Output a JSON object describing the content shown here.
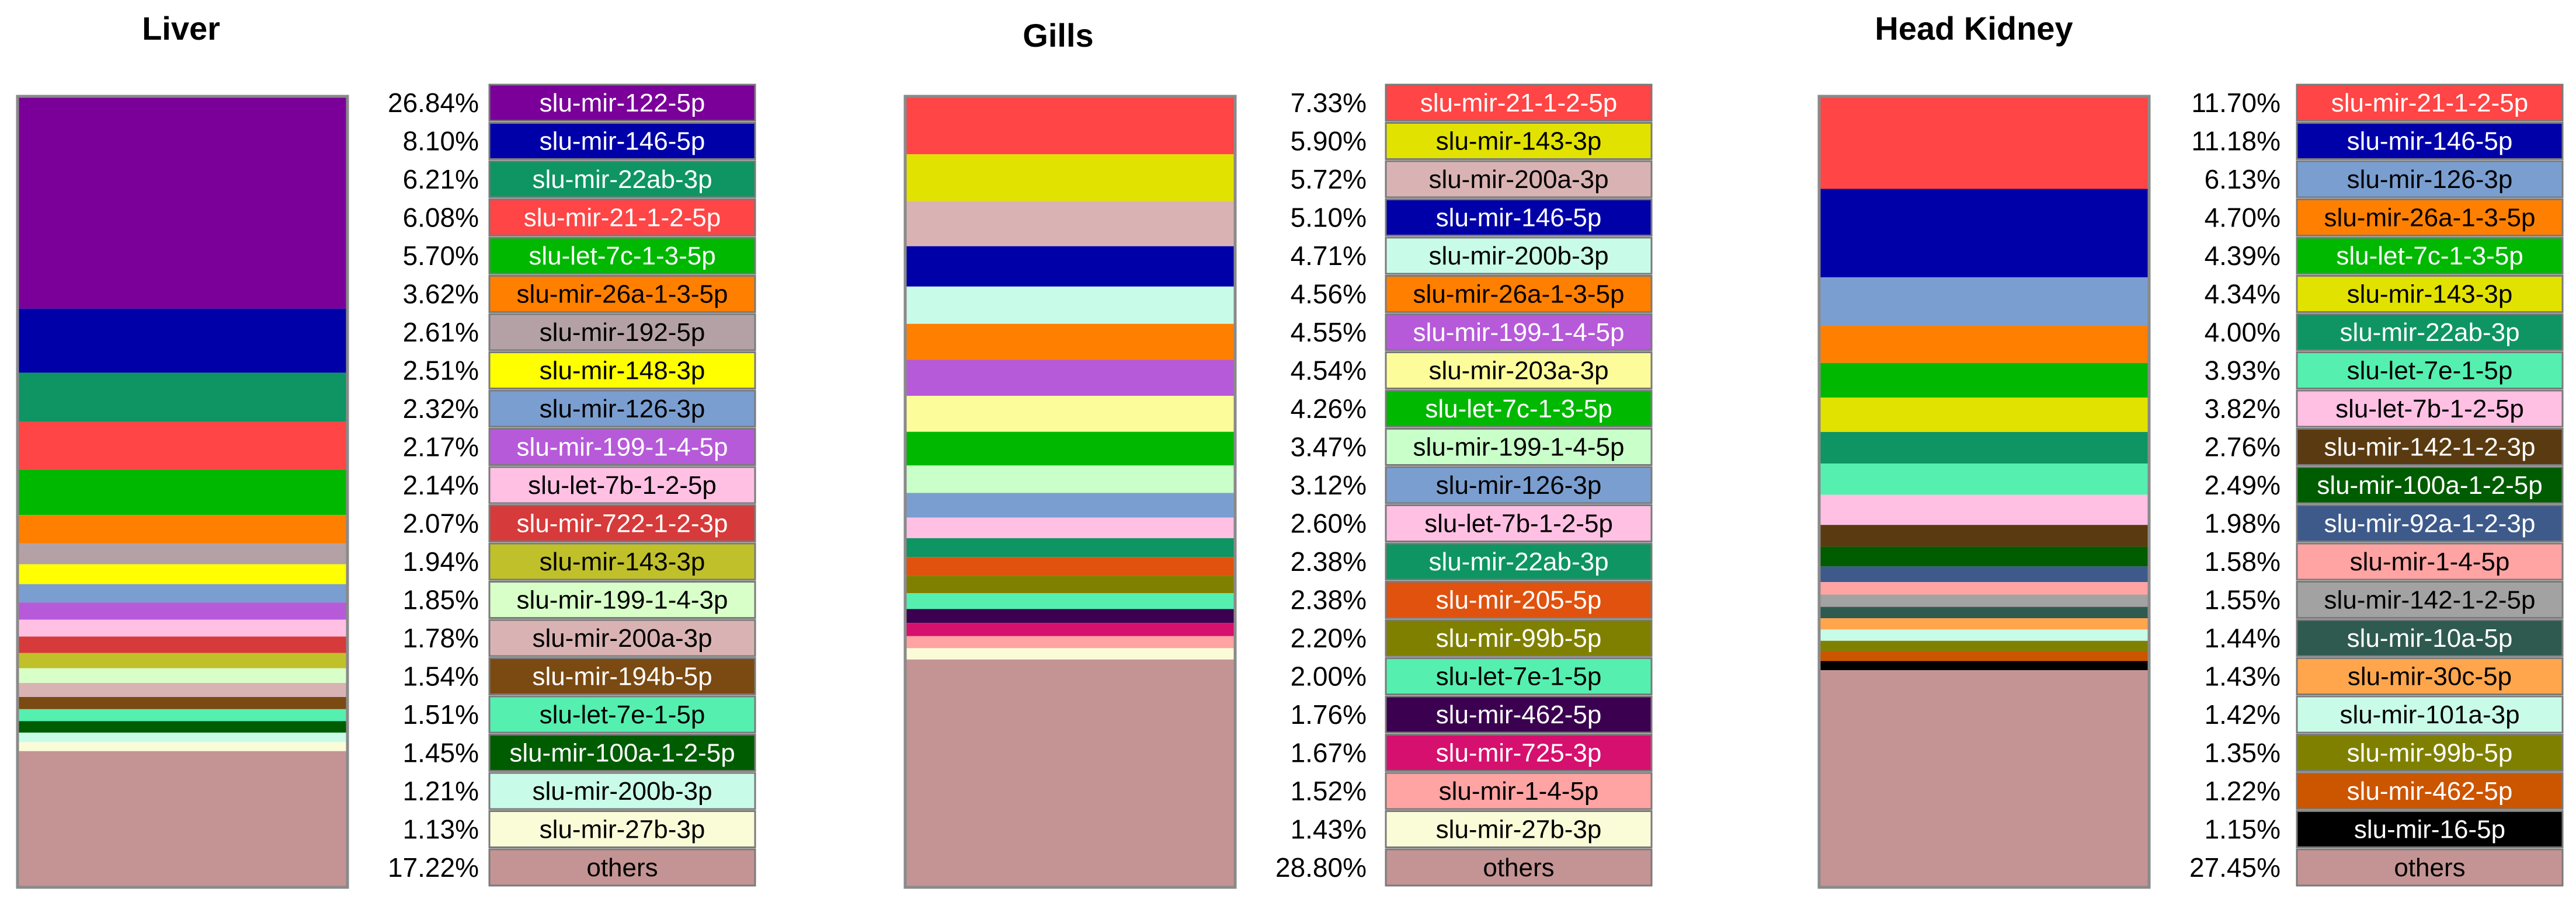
{
  "chart_data": [
    {
      "type": "bar",
      "subtype": "100%-stacked",
      "title": "Liver",
      "series": [
        {
          "name": "slu-mir-122-5p",
          "value": 26.84,
          "label": "26.84%",
          "color": "#7a0099"
        },
        {
          "name": "slu-mir-146-5p",
          "value": 8.1,
          "label": "8.10%",
          "color": "#0000a8"
        },
        {
          "name": "slu-mir-22ab-3p",
          "value": 6.21,
          "label": "6.21%",
          "color": "#0e9563"
        },
        {
          "name": "slu-mir-21-1-2-5p",
          "value": 6.08,
          "label": "6.08%",
          "color": "#ff4545"
        },
        {
          "name": "slu-let-7c-1-3-5p",
          "value": 5.7,
          "label": "5.70%",
          "color": "#00b800"
        },
        {
          "name": "slu-mir-26a-1-3-5p",
          "value": 3.62,
          "label": "3.62%",
          "color": "#ff7f00"
        },
        {
          "name": "slu-mir-192-5p",
          "value": 2.61,
          "label": "2.61%",
          "color": "#b3a1a6"
        },
        {
          "name": "slu-mir-148-3p",
          "value": 2.51,
          "label": "2.51%",
          "color": "#ffff00"
        },
        {
          "name": "slu-mir-126-3p",
          "value": 2.32,
          "label": "2.32%",
          "color": "#7a9ed0"
        },
        {
          "name": "slu-mir-199-1-4-5p",
          "value": 2.17,
          "label": "2.17%",
          "color": "#b65ad9"
        },
        {
          "name": "slu-let-7b-1-2-5p",
          "value": 2.14,
          "label": "2.14%",
          "color": "#ffc0e3"
        },
        {
          "name": "slu-mir-722-1-2-3p",
          "value": 2.07,
          "label": "2.07%",
          "color": "#d63a3a"
        },
        {
          "name": "slu-mir-143-3p",
          "value": 1.94,
          "label": "1.94%",
          "color": "#c0c02a"
        },
        {
          "name": "slu-mir-199-1-4-3p",
          "value": 1.85,
          "label": "1.85%",
          "color": "#d9ffc9"
        },
        {
          "name": "slu-mir-200a-3p",
          "value": 1.78,
          "label": "1.78%",
          "color": "#d9b3b3"
        },
        {
          "name": "slu-mir-194b-5p",
          "value": 1.54,
          "label": "1.54%",
          "color": "#7a4a12"
        },
        {
          "name": "slu-let-7e-1-5p",
          "value": 1.51,
          "label": "1.51%",
          "color": "#55efb0"
        },
        {
          "name": "slu-mir-100a-1-2-5p",
          "value": 1.45,
          "label": "1.45%",
          "color": "#005c00"
        },
        {
          "name": "slu-mir-200b-3p",
          "value": 1.21,
          "label": "1.21%",
          "color": "#c9fbe9"
        },
        {
          "name": "slu-mir-27b-3p",
          "value": 1.13,
          "label": "1.13%",
          "color": "#fafcd8"
        },
        {
          "name": "others",
          "value": 17.22,
          "label": "17.22%",
          "color": "#c49494"
        }
      ]
    },
    {
      "type": "bar",
      "subtype": "100%-stacked",
      "title": "Gills",
      "series": [
        {
          "name": "slu-mir-21-1-2-5p",
          "value": 7.33,
          "label": "7.33%",
          "color": "#ff4545"
        },
        {
          "name": "slu-mir-143-3p",
          "value": 5.9,
          "label": "5.90%",
          "color": "#e2e200"
        },
        {
          "name": "slu-mir-200a-3p",
          "value": 5.72,
          "label": "5.72%",
          "color": "#d9b3b3"
        },
        {
          "name": "slu-mir-146-5p",
          "value": 5.1,
          "label": "5.10%",
          "color": "#0000a8"
        },
        {
          "name": "slu-mir-200b-3p",
          "value": 4.71,
          "label": "4.71%",
          "color": "#c9fbe9"
        },
        {
          "name": "slu-mir-26a-1-3-5p",
          "value": 4.56,
          "label": "4.56%",
          "color": "#ff7f00"
        },
        {
          "name": "slu-mir-199-1-4-5p",
          "value": 4.55,
          "label": "4.55%",
          "color": "#b65ad9"
        },
        {
          "name": "slu-mir-203a-3p",
          "value": 4.54,
          "label": "4.54%",
          "color": "#fdfc9a"
        },
        {
          "name": "slu-let-7c-1-3-5p",
          "value": 4.26,
          "label": "4.26%",
          "color": "#00b800"
        },
        {
          "name": "slu-mir-199-1-4-5p",
          "value": 3.47,
          "label": "3.47%",
          "color": "#c9ffc9"
        },
        {
          "name": "slu-mir-126-3p",
          "value": 3.12,
          "label": "3.12%",
          "color": "#7a9ed0"
        },
        {
          "name": "slu-let-7b-1-2-5p",
          "value": 2.6,
          "label": "2.60%",
          "color": "#ffc0e3"
        },
        {
          "name": "slu-mir-22ab-3p",
          "value": 2.38,
          "label": "2.38%",
          "color": "#0e9563"
        },
        {
          "name": "slu-mir-205-5p",
          "value": 2.38,
          "label": "2.38%",
          "color": "#e0520e"
        },
        {
          "name": "slu-mir-99b-5p",
          "value": 2.2,
          "label": "2.20%",
          "color": "#808000"
        },
        {
          "name": "slu-let-7e-1-5p",
          "value": 2.0,
          "label": "2.00%",
          "color": "#55efb0"
        },
        {
          "name": "slu-mir-462-5p",
          "value": 1.76,
          "label": "1.76%",
          "color": "#3c0050"
        },
        {
          "name": "slu-mir-725-3p",
          "value": 1.67,
          "label": "1.67%",
          "color": "#d6106e"
        },
        {
          "name": "slu-mir-1-4-5p",
          "value": 1.52,
          "label": "1.52%",
          "color": "#ffa3a3"
        },
        {
          "name": "slu-mir-27b-3p",
          "value": 1.43,
          "label": "1.43%",
          "color": "#fafcd8"
        },
        {
          "name": "others",
          "value": 28.8,
          "label": "28.80%",
          "color": "#c49494"
        }
      ]
    },
    {
      "type": "bar",
      "subtype": "100%-stacked",
      "title": "Head Kidney",
      "series": [
        {
          "name": "slu-mir-21-1-2-5p",
          "value": 11.7,
          "label": "11.70%",
          "color": "#ff4545"
        },
        {
          "name": "slu-mir-146-5p",
          "value": 11.18,
          "label": "11.18%",
          "color": "#0000a8"
        },
        {
          "name": "slu-mir-126-3p",
          "value": 6.13,
          "label": "6.13%",
          "color": "#7a9ed0"
        },
        {
          "name": "slu-mir-26a-1-3-5p",
          "value": 4.7,
          "label": "4.70%",
          "color": "#ff7f00"
        },
        {
          "name": "slu-let-7c-1-3-5p",
          "value": 4.39,
          "label": "4.39%",
          "color": "#00b800"
        },
        {
          "name": "slu-mir-143-3p",
          "value": 4.34,
          "label": "4.34%",
          "color": "#e2e200"
        },
        {
          "name": "slu-mir-22ab-3p",
          "value": 4.0,
          "label": "4.00%",
          "color": "#0e9563"
        },
        {
          "name": "slu-let-7e-1-5p",
          "value": 3.93,
          "label": "3.93%",
          "color": "#55efb0"
        },
        {
          "name": "slu-let-7b-1-2-5p",
          "value": 3.82,
          "label": "3.82%",
          "color": "#ffc0e3"
        },
        {
          "name": "slu-mir-142-1-2-3p",
          "value": 2.76,
          "label": "2.76%",
          "color": "#5a3a10"
        },
        {
          "name": "slu-mir-100a-1-2-5p",
          "value": 2.49,
          "label": "2.49%",
          "color": "#005c00"
        },
        {
          "name": "slu-mir-92a-1-2-3p",
          "value": 1.98,
          "label": "1.98%",
          "color": "#3d5a8a"
        },
        {
          "name": "slu-mir-1-4-5p",
          "value": 1.58,
          "label": "1.58%",
          "color": "#ffa3a3"
        },
        {
          "name": "slu-mir-142-1-2-5p",
          "value": 1.55,
          "label": "1.55%",
          "color": "#a2a2a2"
        },
        {
          "name": "slu-mir-10a-5p",
          "value": 1.44,
          "label": "1.44%",
          "color": "#2f5a50"
        },
        {
          "name": "slu-mir-30c-5p",
          "value": 1.43,
          "label": "1.43%",
          "color": "#ffa64d"
        },
        {
          "name": "slu-mir-101a-3p",
          "value": 1.42,
          "label": "1.42%",
          "color": "#c9fbe9"
        },
        {
          "name": "slu-mir-99b-5p",
          "value": 1.35,
          "label": "1.35%",
          "color": "#808000"
        },
        {
          "name": "slu-mir-462-5p",
          "value": 1.22,
          "label": "1.22%",
          "color": "#cc5500"
        },
        {
          "name": "slu-mir-16-5p",
          "value": 1.15,
          "label": "1.15%",
          "color": "#000000"
        },
        {
          "name": "others",
          "value": 27.45,
          "label": "27.45%",
          "color": "#c49494"
        }
      ]
    }
  ]
}
